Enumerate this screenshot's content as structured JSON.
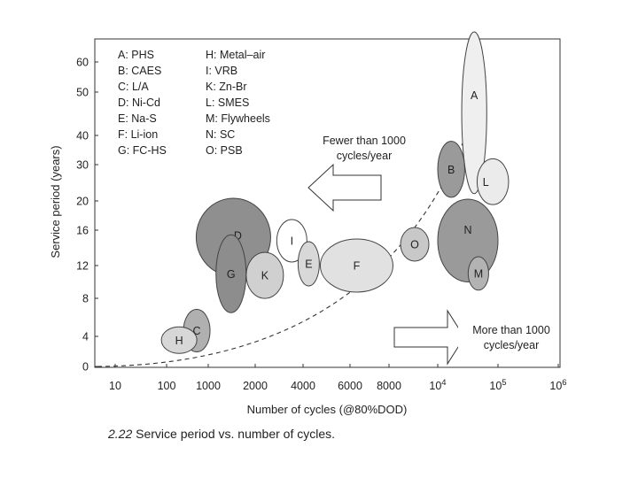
{
  "chart_data": {
    "type": "bubble",
    "xlabel": "Number of cycles (@80%DOD)",
    "ylabel": "Service period (years)",
    "x_ticks": [
      "10",
      "100",
      "1000",
      "2000",
      "4000",
      "6000",
      "8000",
      "10⁴",
      "10⁵",
      "10⁶"
    ],
    "y_ticks": [
      "0",
      "4",
      "8",
      "12",
      "16",
      "20",
      "30",
      "40",
      "50",
      "60"
    ],
    "legend": [
      {
        "key": "A",
        "name": "PHS"
      },
      {
        "key": "B",
        "name": "CAES"
      },
      {
        "key": "C",
        "name": "L/A"
      },
      {
        "key": "D",
        "name": "Ni-Cd"
      },
      {
        "key": "E",
        "name": "Na-S"
      },
      {
        "key": "F",
        "name": "Li-ion"
      },
      {
        "key": "G",
        "name": "FC-HS"
      },
      {
        "key": "H",
        "name": "Metal–air"
      },
      {
        "key": "I",
        "name": "VRB"
      },
      {
        "key": "K",
        "name": "Zn-Br"
      },
      {
        "key": "L",
        "name": "SMES"
      },
      {
        "key": "M",
        "name": "Flywheels"
      },
      {
        "key": "N",
        "name": "SC"
      },
      {
        "key": "O",
        "name": "PSB"
      }
    ],
    "regions": [
      {
        "key": "A",
        "x": [
          25000,
          65000
        ],
        "y": [
          22,
          70
        ],
        "fill": "#efefef"
      },
      {
        "key": "L",
        "x": [
          45000,
          150000
        ],
        "y": [
          19.5,
          32
        ],
        "fill": "#ebebeb"
      },
      {
        "key": "N",
        "x": [
          10000,
          100000
        ],
        "y": [
          10,
          20.5
        ],
        "fill": "#9a9a9a"
      },
      {
        "key": "B",
        "x": [
          10000,
          28000
        ],
        "y": [
          21,
          38
        ],
        "fill": "#9a9a9a"
      },
      {
        "key": "M",
        "x": [
          32000,
          70000
        ],
        "y": [
          9,
          13
        ],
        "fill": "#b3b3b3"
      },
      {
        "key": "D",
        "x": 1450,
        "y": 15.2,
        "rx": 42,
        "ry": 44,
        "fill": "#8f8f8f"
      },
      {
        "key": "G",
        "x": 1400,
        "y": 11.0,
        "rx": 17,
        "ry": 44,
        "fill": "#8d8d8d"
      },
      {
        "key": "K",
        "x": 2300,
        "y": 10.8,
        "rx": 21,
        "ry": 26,
        "fill": "#d0d0d0"
      },
      {
        "key": "I",
        "x": 3400,
        "y": 14.8,
        "rx": 17,
        "ry": 24,
        "fill": "#ffffff"
      },
      {
        "key": "E",
        "x": 4200,
        "y": 12.2,
        "rx": 12,
        "ry": 25,
        "fill": "#d8d8d8"
      },
      {
        "key": "F",
        "x": 6300,
        "y": 12.0,
        "rx": 41,
        "ry": 30,
        "fill": "#e1e1e1"
      },
      {
        "key": "O",
        "x": 9000,
        "y": 14.4,
        "rx": 16,
        "ry": 19,
        "fill": "#c8c8c8"
      },
      {
        "key": "C",
        "x": 530,
        "y": 4.6,
        "rx": 15,
        "ry": 24,
        "fill": "#b0b0b0"
      },
      {
        "key": "H",
        "x": 200,
        "y": 3.5,
        "rx": 20,
        "ry": 15,
        "fill": "#d7d7d7"
      }
    ],
    "annotations": [
      {
        "lines": [
          "Fewer than 1000",
          "cycles/year"
        ],
        "arrow": "left"
      },
      {
        "lines": [
          "More than 1000",
          "cycles/year"
        ],
        "arrow": "right"
      }
    ],
    "boundary": {
      "style": "dashed",
      "label": ""
    }
  },
  "caption": {
    "number": "2.22",
    "text": " Service period vs. number of cycles."
  }
}
